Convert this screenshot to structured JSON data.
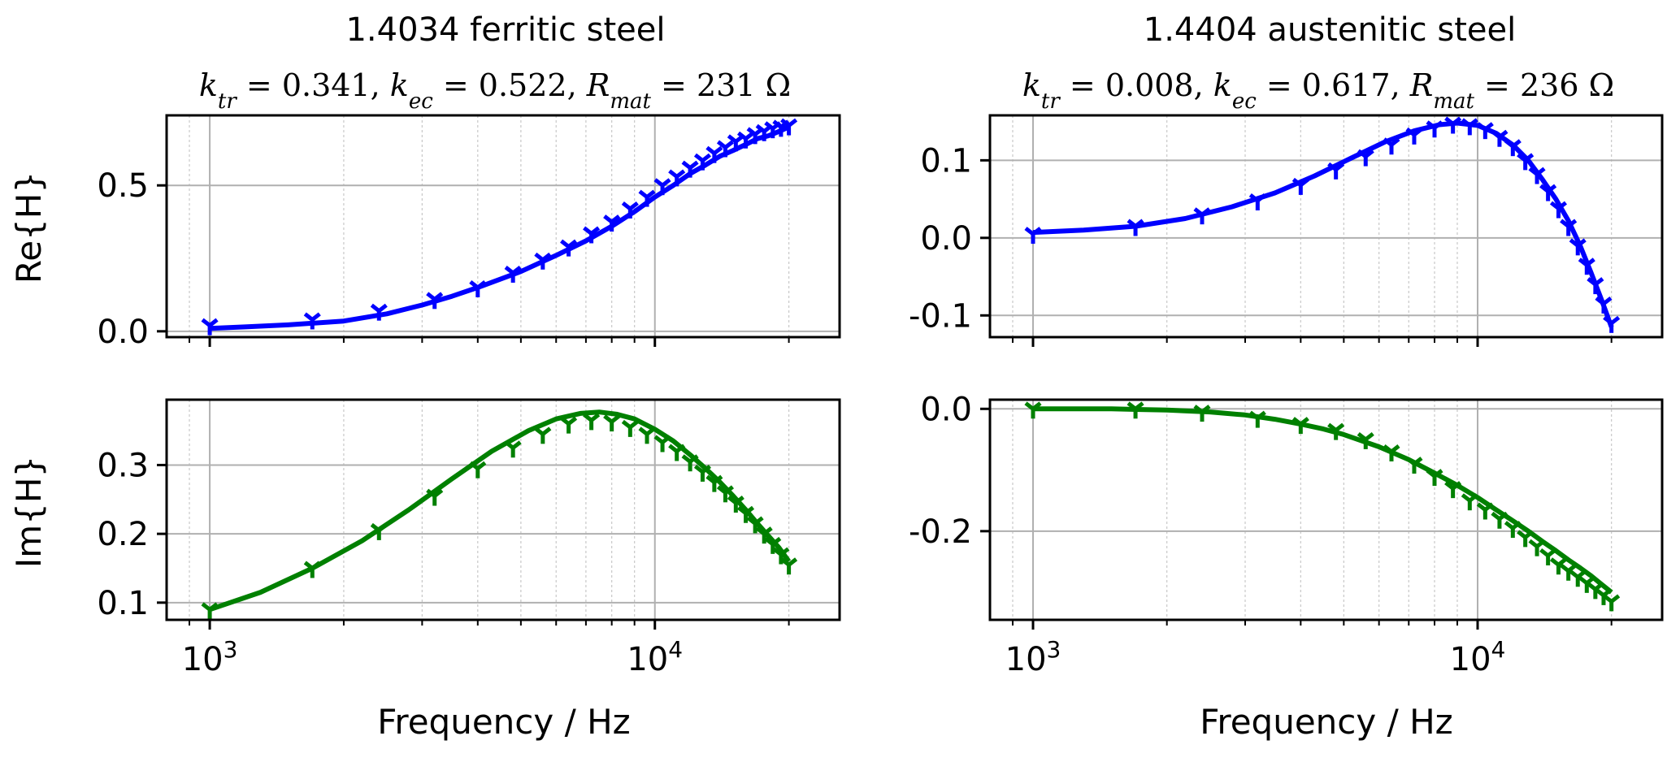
{
  "figure": {
    "columns": [
      {
        "title": "1.4034 ferritic steel",
        "subtitle": "k_tr = 0.341, k_ec = 0.522, R_mat = 231 Ω",
        "subtitle_parts": {
          "ktr": "0.341",
          "kec": "0.522",
          "rmat": "231 Ω"
        }
      },
      {
        "title": "1.4404 austenitic steel",
        "subtitle": "k_tr = 0.008, k_ec = 0.617, R_mat = 236 Ω",
        "subtitle_parts": {
          "ktr": "0.008",
          "kec": "0.617",
          "rmat": "236 Ω"
        }
      }
    ],
    "xlabel": "Frequency / Hz",
    "row_labels": [
      "Re{H}",
      "Im{H}"
    ],
    "x_tick_labels": [
      {
        "value": 1000,
        "base": "10",
        "exp": "3"
      },
      {
        "value": 10000,
        "base": "10",
        "exp": "4"
      }
    ]
  },
  "chart_data": [
    {
      "type": "line",
      "row": 0,
      "col": 0,
      "ylabel": "Re{H}",
      "xscale": "log",
      "xlim": [
        800,
        26000
      ],
      "ylim": [
        -0.02,
        0.74
      ],
      "yticks": [
        0.0,
        0.5
      ],
      "ytick_labels": [
        "0.0",
        "0.5"
      ],
      "color": "#0000ff",
      "fit_curve": {
        "x": [
          1000,
          1200,
          1500,
          2000,
          2500,
          3000,
          3500,
          4000,
          5000,
          6000,
          7000,
          8000,
          9000,
          10000,
          11000,
          12000,
          13000,
          14000,
          15000,
          16000,
          17000,
          18000,
          19000,
          20000
        ],
        "y": [
          0.01,
          0.015,
          0.022,
          0.035,
          0.06,
          0.09,
          0.12,
          0.15,
          0.205,
          0.26,
          0.31,
          0.36,
          0.41,
          0.46,
          0.5,
          0.54,
          0.57,
          0.6,
          0.62,
          0.64,
          0.66,
          0.67,
          0.685,
          0.7
        ]
      },
      "measured": {
        "x": [
          1000,
          1700,
          2400,
          3200,
          4000,
          4800,
          5600,
          6400,
          7200,
          8000,
          8800,
          9600,
          10400,
          11200,
          12000,
          12800,
          13600,
          14400,
          15200,
          16000,
          16800,
          17600,
          18400,
          19200,
          20000
        ],
        "y": [
          0.02,
          0.04,
          0.07,
          0.11,
          0.15,
          0.2,
          0.245,
          0.29,
          0.335,
          0.375,
          0.42,
          0.46,
          0.5,
          0.53,
          0.56,
          0.585,
          0.61,
          0.63,
          0.65,
          0.66,
          0.675,
          0.685,
          0.695,
          0.7,
          0.705
        ]
      }
    },
    {
      "type": "line",
      "row": 0,
      "col": 1,
      "xscale": "log",
      "xlim": [
        800,
        26000
      ],
      "ylim": [
        -0.128,
        0.158
      ],
      "yticks": [
        -0.1,
        0.0,
        0.1
      ],
      "ytick_labels": [
        "-0.1",
        "0.0",
        "0.1"
      ],
      "color": "#0000ff",
      "fit_curve": {
        "x": [
          1000,
          1300,
          1700,
          2200,
          2800,
          3500,
          4300,
          5200,
          6200,
          7200,
          8200,
          9000,
          10000,
          11000,
          12000,
          13000,
          14000,
          15000,
          16000,
          17000,
          18000,
          19000,
          20000
        ],
        "y": [
          0.007,
          0.01,
          0.015,
          0.025,
          0.04,
          0.058,
          0.08,
          0.103,
          0.124,
          0.138,
          0.146,
          0.148,
          0.145,
          0.135,
          0.12,
          0.1,
          0.075,
          0.05,
          0.022,
          -0.01,
          -0.045,
          -0.08,
          -0.115
        ]
      },
      "measured": {
        "x": [
          1000,
          1700,
          2400,
          3200,
          4000,
          4800,
          5600,
          6400,
          7200,
          8000,
          8800,
          9600,
          10400,
          11200,
          12000,
          12800,
          13600,
          14400,
          15200,
          16000,
          16800,
          17600,
          18400,
          19200,
          20000
        ],
        "y": [
          0.005,
          0.015,
          0.03,
          0.048,
          0.068,
          0.088,
          0.105,
          0.12,
          0.133,
          0.142,
          0.147,
          0.145,
          0.14,
          0.13,
          0.118,
          0.1,
          0.082,
          0.06,
          0.038,
          0.015,
          -0.01,
          -0.035,
          -0.06,
          -0.085,
          -0.11
        ]
      }
    },
    {
      "type": "line",
      "row": 1,
      "col": 0,
      "ylabel": "Im{H}",
      "xlabel": "Frequency / Hz",
      "xscale": "log",
      "xlim": [
        800,
        26000
      ],
      "ylim": [
        0.075,
        0.395
      ],
      "yticks": [
        0.1,
        0.2,
        0.3
      ],
      "ytick_labels": [
        "0.1",
        "0.2",
        "0.3"
      ],
      "color": "#008000",
      "fit_curve": {
        "x": [
          1000,
          1300,
          1700,
          2200,
          2800,
          3500,
          4300,
          5200,
          6000,
          6800,
          7500,
          8200,
          9000,
          10000,
          11000,
          12000,
          13000,
          14000,
          15000,
          16000,
          17000,
          18000,
          19000,
          20000
        ],
        "y": [
          0.09,
          0.115,
          0.15,
          0.19,
          0.235,
          0.28,
          0.32,
          0.35,
          0.367,
          0.375,
          0.377,
          0.374,
          0.367,
          0.352,
          0.335,
          0.315,
          0.295,
          0.275,
          0.255,
          0.235,
          0.215,
          0.197,
          0.18,
          0.16
        ]
      },
      "measured": {
        "x": [
          1000,
          1700,
          2400,
          3200,
          4000,
          4800,
          5600,
          6400,
          7200,
          8000,
          8800,
          9600,
          10400,
          11200,
          12000,
          12800,
          13600,
          14400,
          15200,
          16000,
          16800,
          17600,
          18400,
          19200,
          20000
        ],
        "y": [
          0.09,
          0.15,
          0.205,
          0.255,
          0.295,
          0.325,
          0.345,
          0.36,
          0.365,
          0.363,
          0.355,
          0.345,
          0.333,
          0.32,
          0.305,
          0.29,
          0.275,
          0.26,
          0.245,
          0.23,
          0.215,
          0.2,
          0.185,
          0.17,
          0.155
        ]
      }
    },
    {
      "type": "line",
      "row": 1,
      "col": 1,
      "xlabel": "Frequency / Hz",
      "xscale": "log",
      "xlim": [
        800,
        26000
      ],
      "ylim": [
        -0.345,
        0.015
      ],
      "yticks": [
        -0.2,
        0.0
      ],
      "ytick_labels": [
        "-0.2",
        "0.0"
      ],
      "color": "#008000",
      "fit_curve": {
        "x": [
          1000,
          1500,
          2000,
          2500,
          3000,
          3500,
          4000,
          4500,
          5000,
          6000,
          7000,
          8000,
          9000,
          10000,
          11000,
          12000,
          13000,
          14000,
          15000,
          16000,
          17000,
          18000,
          19000,
          20000
        ],
        "y": [
          0.0,
          0.0,
          -0.002,
          -0.005,
          -0.01,
          -0.017,
          -0.025,
          -0.033,
          -0.042,
          -0.062,
          -0.083,
          -0.105,
          -0.125,
          -0.145,
          -0.165,
          -0.183,
          -0.2,
          -0.217,
          -0.232,
          -0.247,
          -0.26,
          -0.273,
          -0.287,
          -0.3
        ]
      },
      "measured": {
        "x": [
          1000,
          1700,
          2400,
          3200,
          4000,
          4800,
          5600,
          6400,
          7200,
          8000,
          8800,
          9600,
          10400,
          11200,
          12000,
          12800,
          13600,
          14400,
          15200,
          16000,
          16800,
          17600,
          18400,
          19200,
          20000
        ],
        "y": [
          0.0,
          0.0,
          -0.005,
          -0.015,
          -0.025,
          -0.035,
          -0.05,
          -0.07,
          -0.09,
          -0.11,
          -0.13,
          -0.15,
          -0.165,
          -0.18,
          -0.195,
          -0.21,
          -0.225,
          -0.24,
          -0.255,
          -0.265,
          -0.275,
          -0.285,
          -0.295,
          -0.305,
          -0.315
        ]
      }
    }
  ]
}
